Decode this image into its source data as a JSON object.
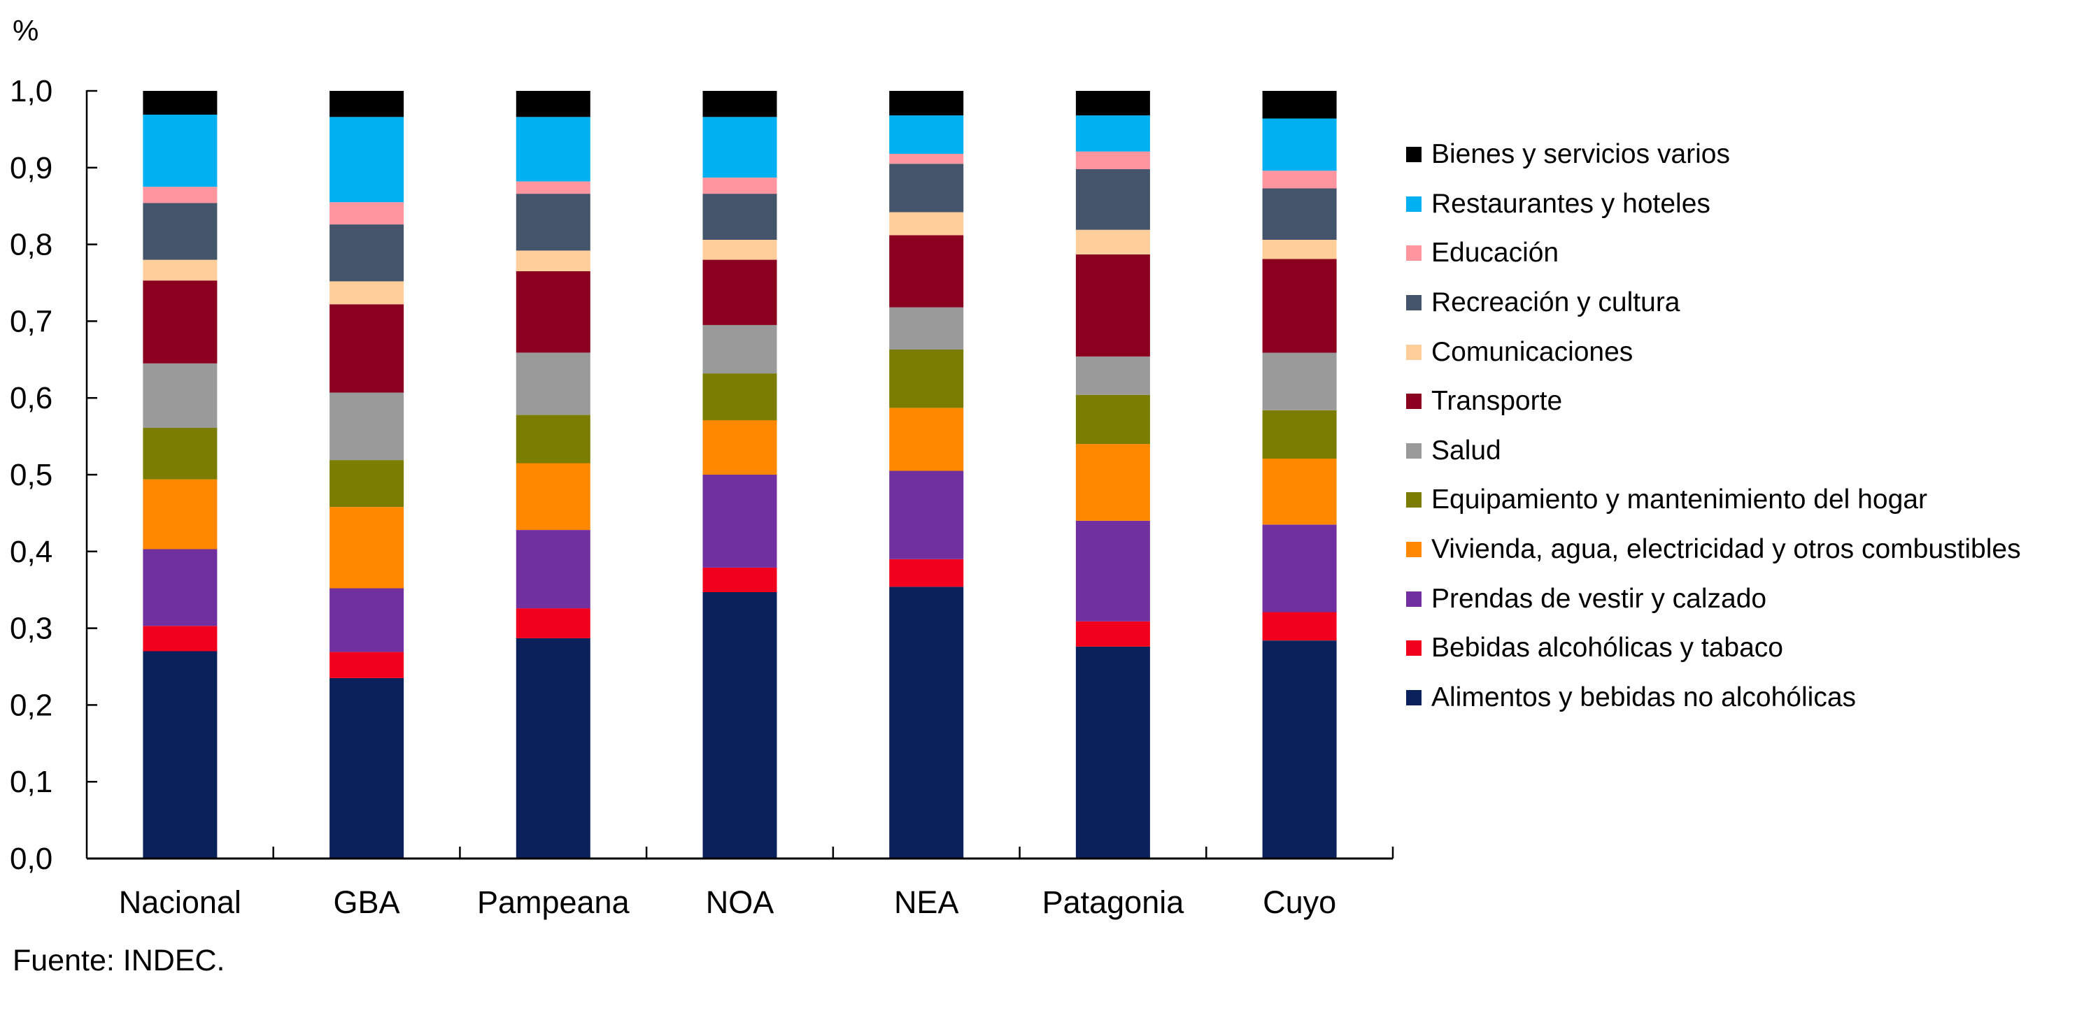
{
  "chart_data": {
    "type": "bar",
    "stacked": true,
    "title": "",
    "unit_label": "%",
    "xlabel": "",
    "ylabel": "%",
    "ylim": [
      0,
      1.0
    ],
    "yticks": [
      "0,0",
      "0,1",
      "0,2",
      "0,3",
      "0,4",
      "0,5",
      "0,6",
      "0,7",
      "0,8",
      "0,9",
      "1,0"
    ],
    "ytick_values": [
      0,
      0.1,
      0.2,
      0.3,
      0.4,
      0.5,
      0.6,
      0.7,
      0.8,
      0.9,
      1.0
    ],
    "grid": false,
    "legend_position": "right",
    "categories": [
      "Nacional",
      "GBA",
      "Pampeana",
      "NOA",
      "NEA",
      "Patagonia",
      "Cuyo"
    ],
    "series": [
      {
        "name": "Alimentos y bebidas no alcohólicas",
        "color": "#0a215c",
        "values": [
          0.27,
          0.235,
          0.287,
          0.347,
          0.354,
          0.276,
          0.284
        ]
      },
      {
        "name": "Bebidas alcohólicas y tabaco",
        "color": "#f0001c",
        "values": [
          0.033,
          0.034,
          0.039,
          0.032,
          0.036,
          0.033,
          0.037
        ]
      },
      {
        "name": "Prendas de vestir y calzado",
        "color": "#7030a0",
        "values": [
          0.1,
          0.083,
          0.102,
          0.121,
          0.115,
          0.131,
          0.114
        ]
      },
      {
        "name": "Vivienda, agua, electricidad y otros combustibles",
        "color": "#ff8800",
        "values": [
          0.091,
          0.106,
          0.087,
          0.071,
          0.082,
          0.1,
          0.086
        ]
      },
      {
        "name": "Equipamiento y mantenimiento del hogar",
        "color": "#7a7d00",
        "values": [
          0.067,
          0.061,
          0.063,
          0.061,
          0.076,
          0.064,
          0.063
        ]
      },
      {
        "name": "Salud",
        "color": "#9a9a9a",
        "values": [
          0.084,
          0.088,
          0.081,
          0.063,
          0.055,
          0.05,
          0.075
        ]
      },
      {
        "name": "Transporte",
        "color": "#8b001e",
        "values": [
          0.108,
          0.115,
          0.106,
          0.085,
          0.094,
          0.133,
          0.122
        ]
      },
      {
        "name": "Comunicaciones",
        "color": "#ffce9a",
        "values": [
          0.027,
          0.03,
          0.027,
          0.026,
          0.03,
          0.032,
          0.025
        ]
      },
      {
        "name": "Recreación y cultura",
        "color": "#44546a",
        "values": [
          0.074,
          0.074,
          0.074,
          0.06,
          0.063,
          0.079,
          0.067
        ]
      },
      {
        "name": "Educación",
        "color": "#ff959e",
        "values": [
          0.021,
          0.029,
          0.016,
          0.021,
          0.013,
          0.023,
          0.023
        ]
      },
      {
        "name": "Restaurantes y hoteles",
        "color": "#00b0f0",
        "values": [
          0.094,
          0.111,
          0.084,
          0.079,
          0.05,
          0.047,
          0.068
        ]
      },
      {
        "name": "Bienes y servicios varios",
        "color": "#000000",
        "values": [
          0.031,
          0.034,
          0.034,
          0.034,
          0.032,
          0.032,
          0.036
        ]
      }
    ],
    "source": "Fuente: INDEC."
  }
}
